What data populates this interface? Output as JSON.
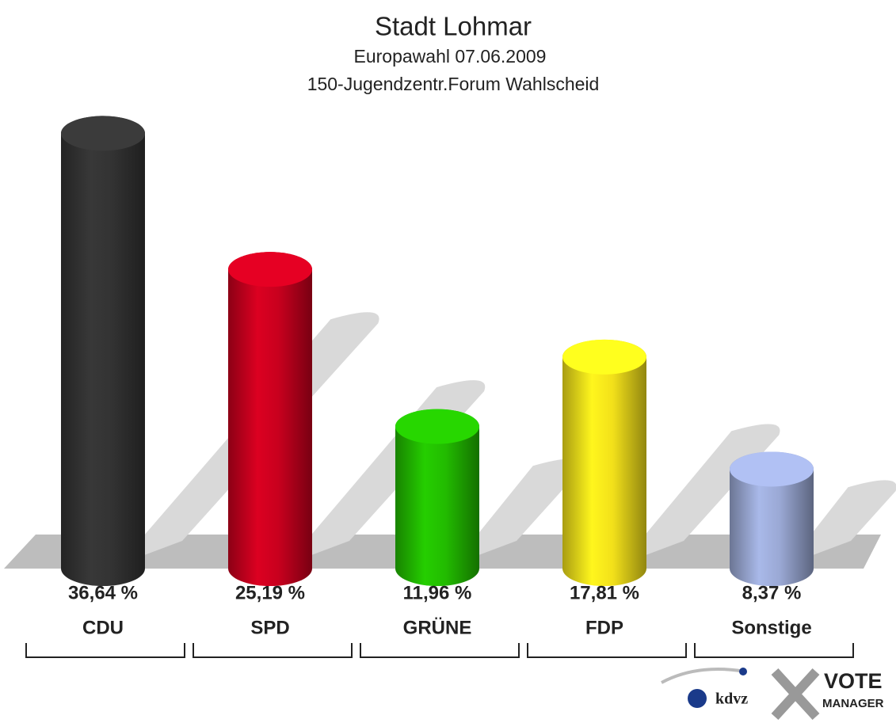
{
  "chart_data": {
    "type": "bar",
    "title": "Stadt Lohmar",
    "subtitle": "Europawahl 07.06.2009",
    "subtitle2": "150-Jugendzentr.Forum Wahlscheid",
    "categories": [
      "CDU",
      "SPD",
      "GRÜNE",
      "FDP",
      "Sonstige"
    ],
    "values": [
      36.64,
      25.19,
      11.96,
      17.81,
      8.37
    ],
    "value_labels": [
      "36,64 %",
      "25,19 %",
      "11,96 %",
      "17,81 %",
      "8,37 %"
    ],
    "colors": [
      "#333333",
      "#c8001e",
      "#22bb00",
      "#f2e01a",
      "#9aa8d4"
    ],
    "branding": {
      "left": "kdvz",
      "right_top": "VOTE",
      "right_bottom": "MANAGER"
    }
  }
}
